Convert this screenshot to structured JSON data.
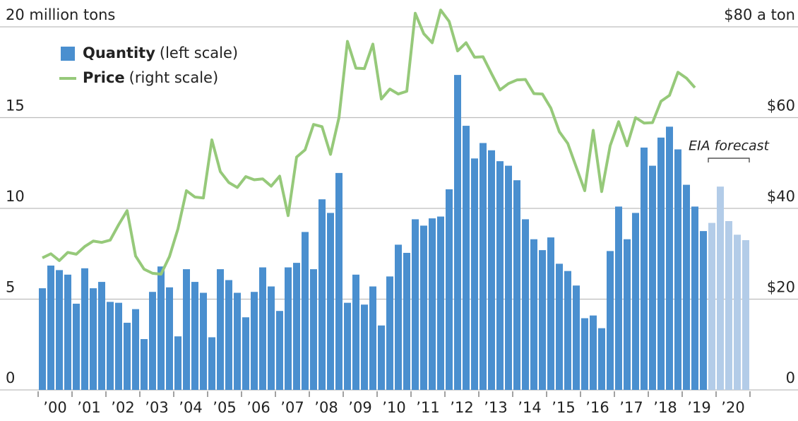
{
  "chart_data": {
    "type": "bar_line",
    "categories": [
      null,
      "’00",
      null,
      null,
      null,
      "’01",
      null,
      null,
      null,
      "’02",
      null,
      null,
      null,
      "’03",
      null,
      null,
      null,
      "’04",
      null,
      null,
      null,
      "’05",
      null,
      null,
      null,
      "’06",
      null,
      null,
      null,
      "’07",
      null,
      null,
      null,
      "’08",
      null,
      null,
      null,
      "’09",
      null,
      null,
      null,
      "’10",
      null,
      null,
      null,
      "’11",
      null,
      null,
      null,
      "’12",
      null,
      null,
      null,
      "’13",
      null,
      null,
      null,
      "’14",
      null,
      null,
      null,
      "’15",
      null,
      null,
      null,
      "’16",
      null,
      null,
      null,
      "’17",
      null,
      null,
      null,
      "’18",
      null,
      null,
      null,
      "’19",
      null,
      null,
      null,
      "’20",
      null,
      null
    ],
    "series": [
      {
        "name": "Quantity",
        "axis_note": "(left scale)",
        "kind": "bar",
        "color": "#4a8fcf",
        "colors": [
          "#4a8fcf",
          "#4a8fcf",
          "#4a8fcf",
          "#4a8fcf",
          "#4a8fcf",
          "#4a8fcf",
          "#4a8fcf",
          "#4a8fcf",
          "#4a8fcf",
          "#4a8fcf",
          "#4a8fcf",
          "#4a8fcf",
          "#4a8fcf",
          "#4a8fcf",
          "#4a8fcf",
          "#4a8fcf",
          "#4a8fcf",
          "#4a8fcf",
          "#4a8fcf",
          "#4a8fcf",
          "#4a8fcf",
          "#4a8fcf",
          "#4a8fcf",
          "#4a8fcf",
          "#4a8fcf",
          "#4a8fcf",
          "#4a8fcf",
          "#4a8fcf",
          "#4a8fcf",
          "#4a8fcf",
          "#4a8fcf",
          "#4a8fcf",
          "#4a8fcf",
          "#4a8fcf",
          "#4a8fcf",
          "#4a8fcf",
          "#4a8fcf",
          "#4a8fcf",
          "#4a8fcf",
          "#4a8fcf",
          "#4a8fcf",
          "#4a8fcf",
          "#4a8fcf",
          "#4a8fcf",
          "#4a8fcf",
          "#4a8fcf",
          "#4a8fcf",
          "#4a8fcf",
          "#4a8fcf",
          "#4a8fcf",
          "#4a8fcf",
          "#4a8fcf",
          "#4a8fcf",
          "#4a8fcf",
          "#4a8fcf",
          "#4a8fcf",
          "#4a8fcf",
          "#4a8fcf",
          "#4a8fcf",
          "#4a8fcf",
          "#4a8fcf",
          "#4a8fcf",
          "#4a8fcf",
          "#4a8fcf",
          "#4a8fcf",
          "#4a8fcf",
          "#4a8fcf",
          "#4a8fcf",
          "#4a8fcf",
          "#4a8fcf",
          "#4a8fcf",
          "#4a8fcf",
          "#4a8fcf",
          "#4a8fcf",
          "#4a8fcf",
          "#4a8fcf",
          "#4a8fcf",
          "#4a8fcf",
          "#4a8fcf",
          "#b3cce8",
          "#b3cce8",
          "#b3cce8",
          "#b3cce8",
          "#b3cce8"
        ],
        "values": [
          5.6,
          6.85,
          6.6,
          6.35,
          4.75,
          6.7,
          5.6,
          5.95,
          4.85,
          4.8,
          3.7,
          4.45,
          2.8,
          5.4,
          6.8,
          5.65,
          2.95,
          6.65,
          5.95,
          5.35,
          2.9,
          6.65,
          6.05,
          5.35,
          4.0,
          5.4,
          6.75,
          5.7,
          4.35,
          6.75,
          7.0,
          8.7,
          6.65,
          10.5,
          9.75,
          11.95,
          4.8,
          6.35,
          4.7,
          5.7,
          3.55,
          6.25,
          8.0,
          7.55,
          9.4,
          9.05,
          9.45,
          9.55,
          11.05,
          17.35,
          14.55,
          12.75,
          13.6,
          13.2,
          12.6,
          12.35,
          11.55,
          9.4,
          8.3,
          7.7,
          8.4,
          6.95,
          6.55,
          5.75,
          3.95,
          4.1,
          3.4,
          7.65,
          10.1,
          8.3,
          9.75,
          13.35,
          12.35,
          13.9,
          14.5,
          13.25,
          11.3,
          10.1,
          8.75,
          9.2,
          11.2,
          9.3,
          8.55,
          8.25
        ]
      },
      {
        "name": "Price",
        "axis_note": "(right scale)",
        "kind": "line",
        "axis": "y2",
        "color": "#96c97a",
        "values": [
          29.1,
          30.0,
          28.5,
          30.3,
          29.9,
          31.6,
          32.8,
          32.5,
          33.0,
          36.4,
          39.5,
          29.5,
          26.6,
          25.7,
          25.5,
          29.4,
          35.5,
          43.9,
          42.5,
          42.3,
          55.1,
          48.1,
          45.7,
          44.6,
          47.0,
          46.3,
          46.5,
          44.9,
          47.1,
          38.4,
          51.3,
          52.9,
          58.5,
          58.0,
          51.9,
          60.0,
          76.8,
          70.9,
          70.8,
          76.2,
          64.1,
          66.3,
          65.2,
          65.8,
          83.0,
          78.5,
          76.5,
          83.7,
          81.2,
          74.7,
          76.5,
          73.3,
          73.4,
          69.7,
          66.1,
          67.5,
          68.3,
          68.4,
          65.3,
          65.2,
          62.1,
          56.9,
          54.3,
          49.1,
          43.9,
          57.2,
          43.7,
          53.8,
          59.1,
          53.8,
          60.0,
          58.8,
          58.9,
          63.6,
          64.9,
          70.0,
          68.7,
          66.6,
          null,
          null,
          null,
          null,
          null,
          null
        ]
      }
    ],
    "annotation": "EIA forecast",
    "ylim": [
      0,
      20
    ],
    "yticks": [
      0,
      5,
      10,
      15,
      {
        "value": 20,
        "label": "20 million tons"
      }
    ],
    "y2lim": [
      0,
      80
    ],
    "y2ticks": [
      0,
      {
        "value": 20,
        "label": "$20"
      },
      {
        "value": 40,
        "label": "$40"
      },
      {
        "value": 60,
        "label": "$60"
      },
      {
        "value": 80,
        "label": "$80 a ton"
      }
    ],
    "grid": true
  }
}
